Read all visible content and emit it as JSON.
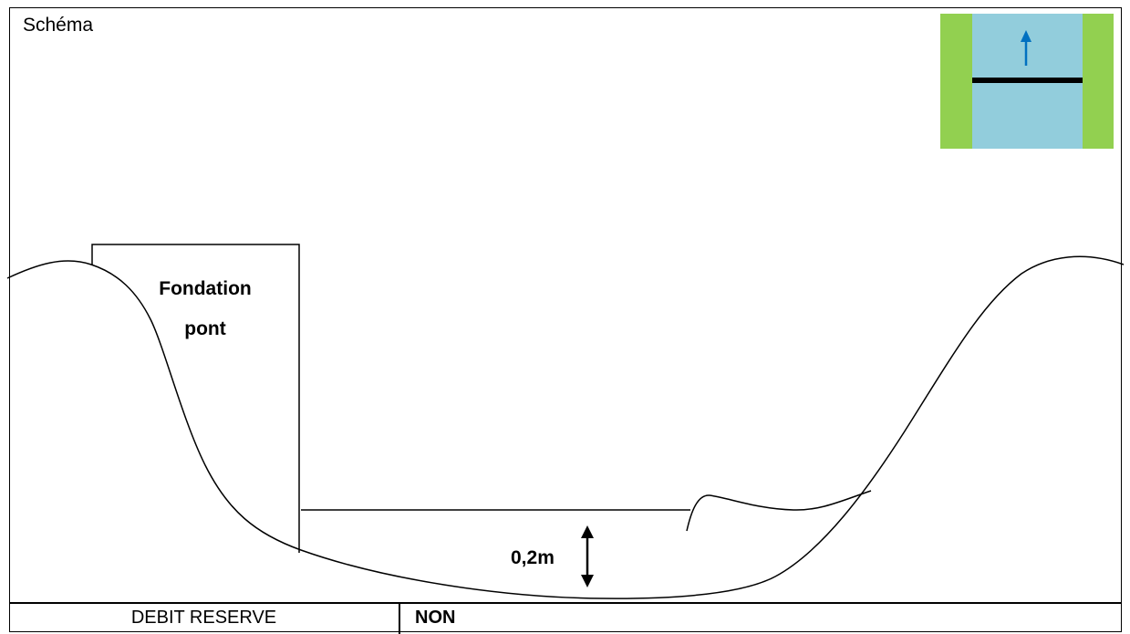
{
  "title": "Schéma",
  "labels": {
    "foundation": "Fondation pont",
    "depth": "0,2m"
  },
  "table": {
    "row_label": "DEBIT RESERVE",
    "row_value": "NON"
  },
  "icon": {
    "name": "flow-direction-icon",
    "bank_color": "#92d050",
    "water_color": "#92cddc",
    "arrow_color": "#0070c0",
    "bar_color": "#000000"
  }
}
